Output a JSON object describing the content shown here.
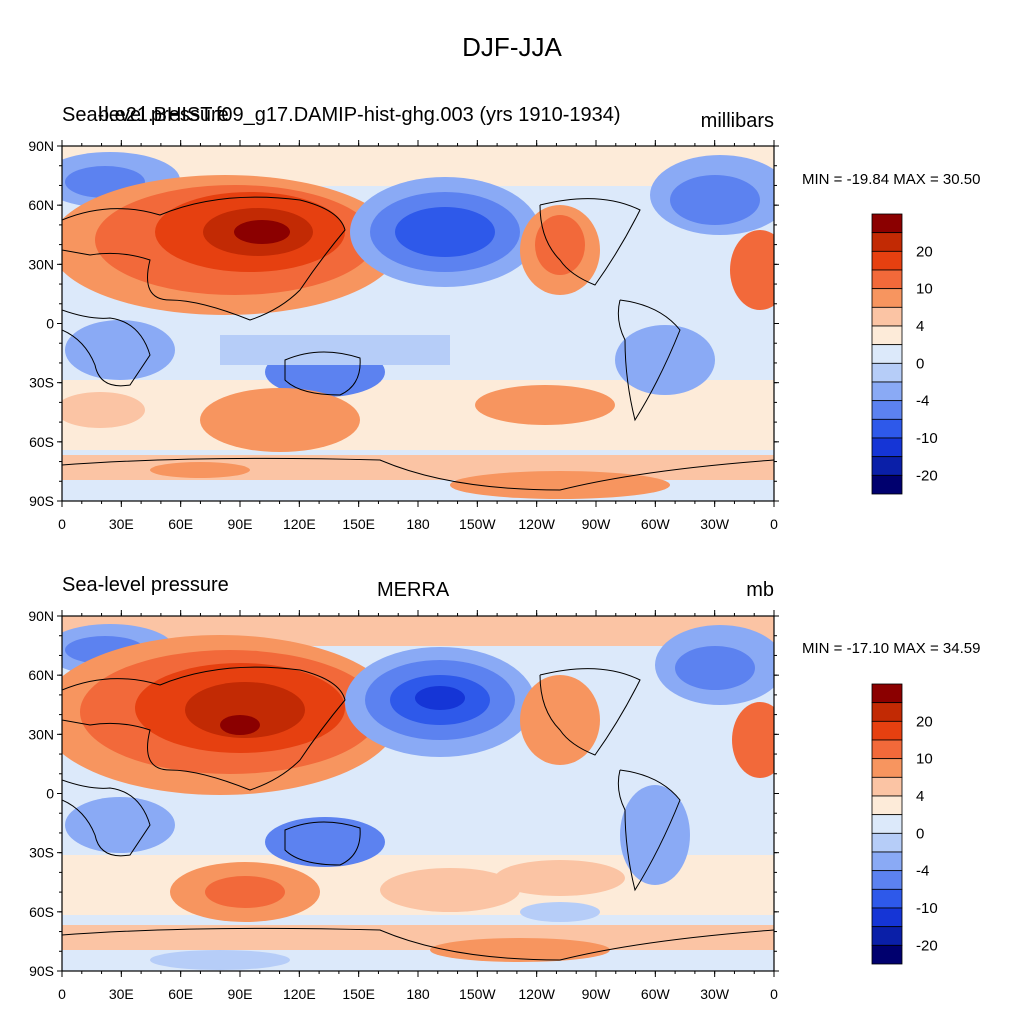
{
  "title": "DJF-JJA",
  "panels": [
    {
      "left_label": "Sea-level pressure",
      "center_label": "b.e21.BHIST.f09_g17.DAMIP-hist-ghg.003 (yrs 1910-1934)",
      "right_label": "millibars",
      "min_max": "MIN = -19.84 MAX =  30.50"
    },
    {
      "left_label": "Sea-level pressure",
      "center_label": "MERRA",
      "right_label": "mb",
      "min_max": "MIN = -17.10 MAX =  34.59"
    }
  ],
  "lat_ticks": [
    "90N",
    "60N",
    "30N",
    "0",
    "30S",
    "60S",
    "90S"
  ],
  "lon_ticks": [
    "0",
    "30E",
    "60E",
    "90E",
    "120E",
    "150E",
    "180",
    "150W",
    "120W",
    "90W",
    "60W",
    "30W",
    "0"
  ],
  "colorbar": {
    "colors": [
      "#8b0000",
      "#c22a04",
      "#e64010",
      "#f2693a",
      "#f7955f",
      "#fbc4a4",
      "#fdebd9",
      "#dce9fa",
      "#b6cdf8",
      "#8aaaf5",
      "#5c82f0",
      "#2e59ea",
      "#1535d6",
      "#0a1fa8",
      "#00006e"
    ],
    "labels": [
      "20",
      "10",
      "4",
      "0",
      "-4",
      "-10",
      "-20"
    ],
    "label_boundaries": [
      2,
      4,
      6,
      8,
      10,
      12,
      14
    ]
  }
}
